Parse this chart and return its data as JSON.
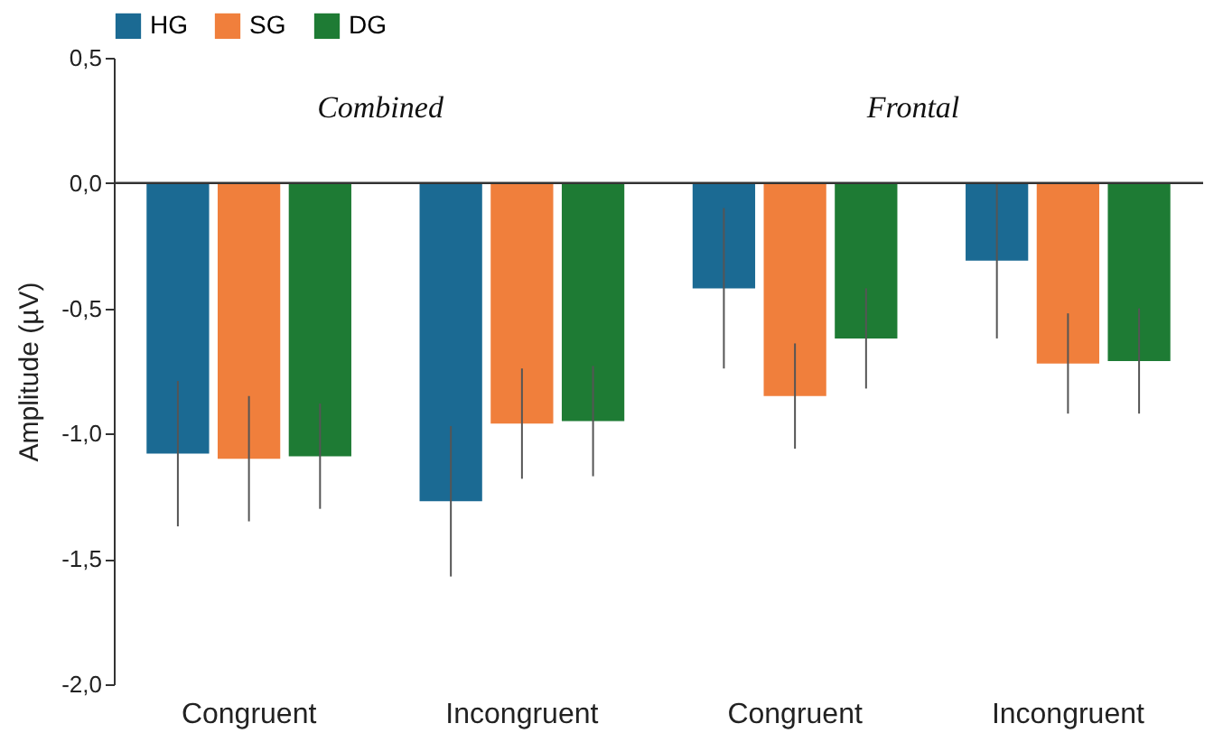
{
  "chart_data": {
    "type": "bar",
    "ylabel": "Amplitude (µV)",
    "annotations": [
      "Combined",
      "Frontal"
    ],
    "categories": [
      "Congruent",
      "Incongruent",
      "Congruent",
      "Incongruent"
    ],
    "series": [
      {
        "name": "HG",
        "color": "#1b6a93",
        "values": [
          -1.08,
          -1.27,
          -0.42,
          -0.31
        ],
        "errors": [
          0.29,
          0.3,
          0.32,
          0.31
        ]
      },
      {
        "name": "SG",
        "color": "#f07f3c",
        "values": [
          -1.1,
          -0.96,
          -0.85,
          -0.72
        ],
        "errors": [
          0.25,
          0.22,
          0.21,
          0.2
        ]
      },
      {
        "name": "DG",
        "color": "#1e7b34",
        "values": [
          -1.09,
          -0.95,
          -0.62,
          -0.71
        ],
        "errors": [
          0.21,
          0.22,
          0.2,
          0.21
        ]
      }
    ],
    "ylim": [
      -2,
      0.5
    ],
    "yticks": [
      {
        "value": -2,
        "label": "-2,0"
      },
      {
        "value": -1.5,
        "label": "-1,5"
      },
      {
        "value": -1,
        "label": "-1,0"
      },
      {
        "value": -0.5,
        "label": "-0,5"
      },
      {
        "value": 0,
        "label": "0,0"
      },
      {
        "value": 0.5,
        "label": "0,5"
      }
    ],
    "ref_lines": [
      {
        "axis": "y",
        "value": 0
      }
    ],
    "legend": "top",
    "grid": false
  }
}
